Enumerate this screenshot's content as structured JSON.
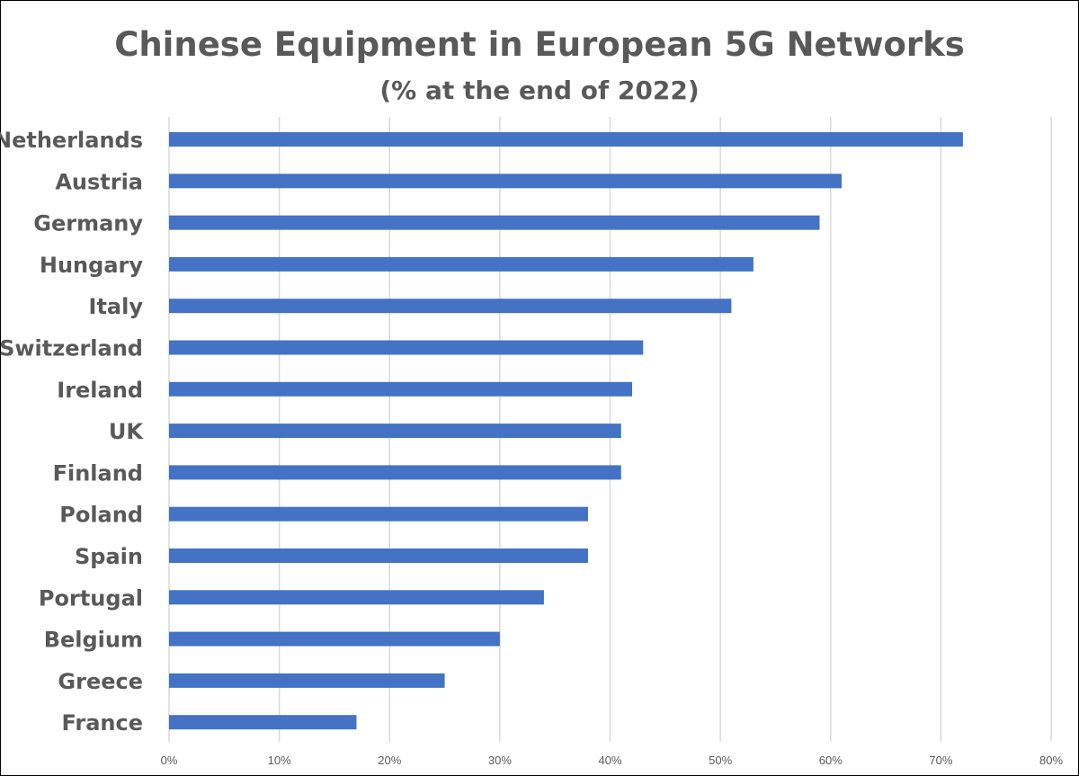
{
  "chart_data": {
    "type": "bar",
    "orientation": "horizontal",
    "title": "Chinese Equipment in European 5G Networks",
    "subtitle": "(% at the end of 2022)",
    "categories": [
      "Netherlands",
      "Austria",
      "Germany",
      "Hungary",
      "Italy",
      "Switzerland",
      "Ireland",
      "UK",
      "Finland",
      "Poland",
      "Spain",
      "Portugal",
      "Belgium",
      "Greece",
      "France"
    ],
    "values": [
      72,
      61,
      59,
      53,
      51,
      43,
      42,
      41,
      41,
      38,
      38,
      34,
      30,
      25,
      17
    ],
    "xlim": [
      0,
      80
    ],
    "xticks": [
      "0%",
      "10%",
      "20%",
      "30%",
      "40%",
      "50%",
      "60%",
      "70%",
      "80%"
    ],
    "grid": "vertical",
    "bar_color": "#4472C4",
    "xlabel": "",
    "ylabel": ""
  }
}
